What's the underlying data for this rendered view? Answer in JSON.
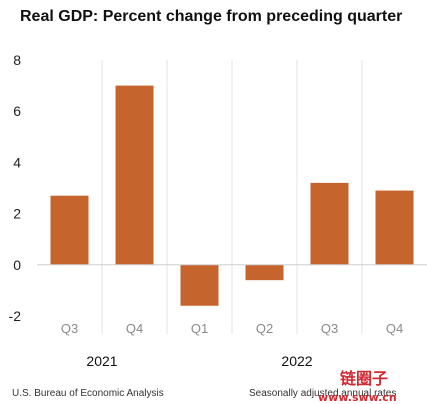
{
  "chart_data": {
    "type": "bar",
    "title": "Real GDP:  Percent change from preceding quarter",
    "categories": [
      "Q3",
      "Q4",
      "Q1",
      "Q2",
      "Q3",
      "Q4"
    ],
    "groups": [
      {
        "label": "2021",
        "start": 0,
        "end": 1
      },
      {
        "label": "2022",
        "start": 2,
        "end": 5
      }
    ],
    "values": [
      2.7,
      7.0,
      -1.6,
      -0.6,
      3.2,
      2.9
    ],
    "yticks": [
      -2,
      0,
      2,
      4,
      6,
      8
    ],
    "ylim": [
      -2,
      8
    ],
    "bar_color": "#c5652d",
    "grid": "vertical separators"
  },
  "footer": {
    "source": "U.S. Bureau of Economic Analysis",
    "note": "Seasonally adjusted annual rates"
  },
  "watermark": {
    "brand": "链圈子",
    "url": "www.sww.cn"
  }
}
